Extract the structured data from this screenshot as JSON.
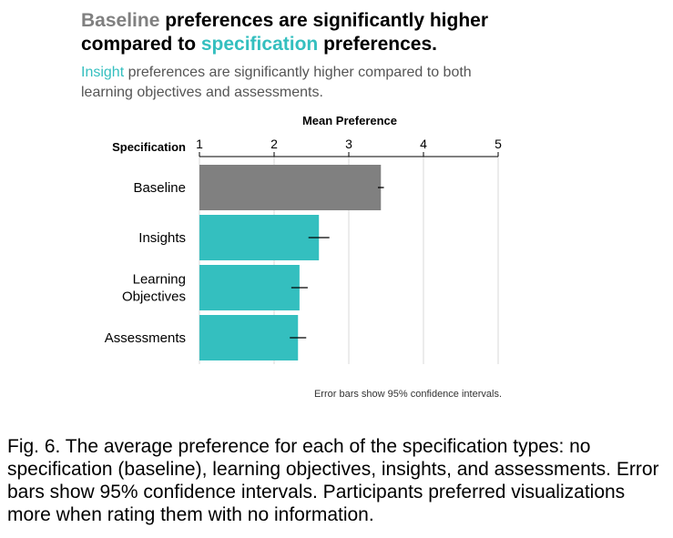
{
  "heading": {
    "line1_a": "Baseline",
    "line1_b": " preferences are significantly higher",
    "line2_a": "compared to ",
    "line2_b": "specification",
    "line2_c": " preferences."
  },
  "subheading": {
    "a": "Insight",
    "b": " preferences are significantly higher compared to both",
    "c": "learning objectives and assessments."
  },
  "colors": {
    "baseline": "#808080",
    "specification": "#34bfbf"
  },
  "chart_data": {
    "type": "bar",
    "orientation": "horizontal",
    "xlabel": "Mean Preference",
    "ylabel": "Specification",
    "xlim": [
      1,
      5
    ],
    "xticks": [
      "1",
      "2",
      "3",
      "4",
      "5"
    ],
    "grid": true,
    "categories": [
      "Baseline",
      "Insights",
      "Learning Objectives",
      "Assessments"
    ],
    "values": [
      3.43,
      2.6,
      2.34,
      2.32
    ],
    "error_low": [
      3.39,
      2.46,
      2.23,
      2.21
    ],
    "error_high": [
      3.47,
      2.74,
      2.45,
      2.43
    ],
    "bar_colors": [
      "#808080",
      "#34bfbf",
      "#34bfbf",
      "#34bfbf"
    ],
    "note": "Error bars show 95% confidence intervals."
  },
  "caption": "Fig. 6. The average preference for each of the specification types: no specification (baseline), learning objectives, insights, and assessments. Error bars show 95% confidence intervals. Participants preferred visualizations more when rating them with no information."
}
